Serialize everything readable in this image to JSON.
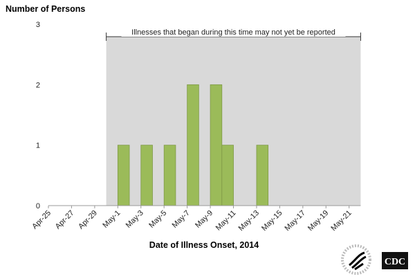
{
  "chart_data": {
    "type": "bar",
    "ylabel": "Number of Persons",
    "xlabel": "Date of Illness Onset, 2014",
    "ylim": [
      0,
      3
    ],
    "yticks": [
      "0",
      "1",
      "2",
      "3"
    ],
    "x_start": "Apr-25",
    "x_end": "May-22",
    "xtick_labels": [
      "Apr-25",
      "Apr-27",
      "Apr-29",
      "May-1",
      "May-3",
      "May-5",
      "May-7",
      "May-9",
      "May-11",
      "May-13",
      "May-15",
      "May-17",
      "May-19",
      "May-21"
    ],
    "categories": [
      "May-1",
      "May-3",
      "May-5",
      "May-7",
      "May-9",
      "May-10",
      "May-13"
    ],
    "values": [
      1,
      1,
      1,
      2,
      2,
      1,
      1
    ],
    "shaded_region": {
      "from": "Apr-30",
      "to": "May-22",
      "label": "Illnesses that began during this time may not yet be reported",
      "color": "#d9d9d9"
    },
    "bar_color": "#9bbb59",
    "grid": false
  },
  "logos": {
    "hhs": "Department of Health & Human Services USA",
    "cdc": "CDC"
  }
}
